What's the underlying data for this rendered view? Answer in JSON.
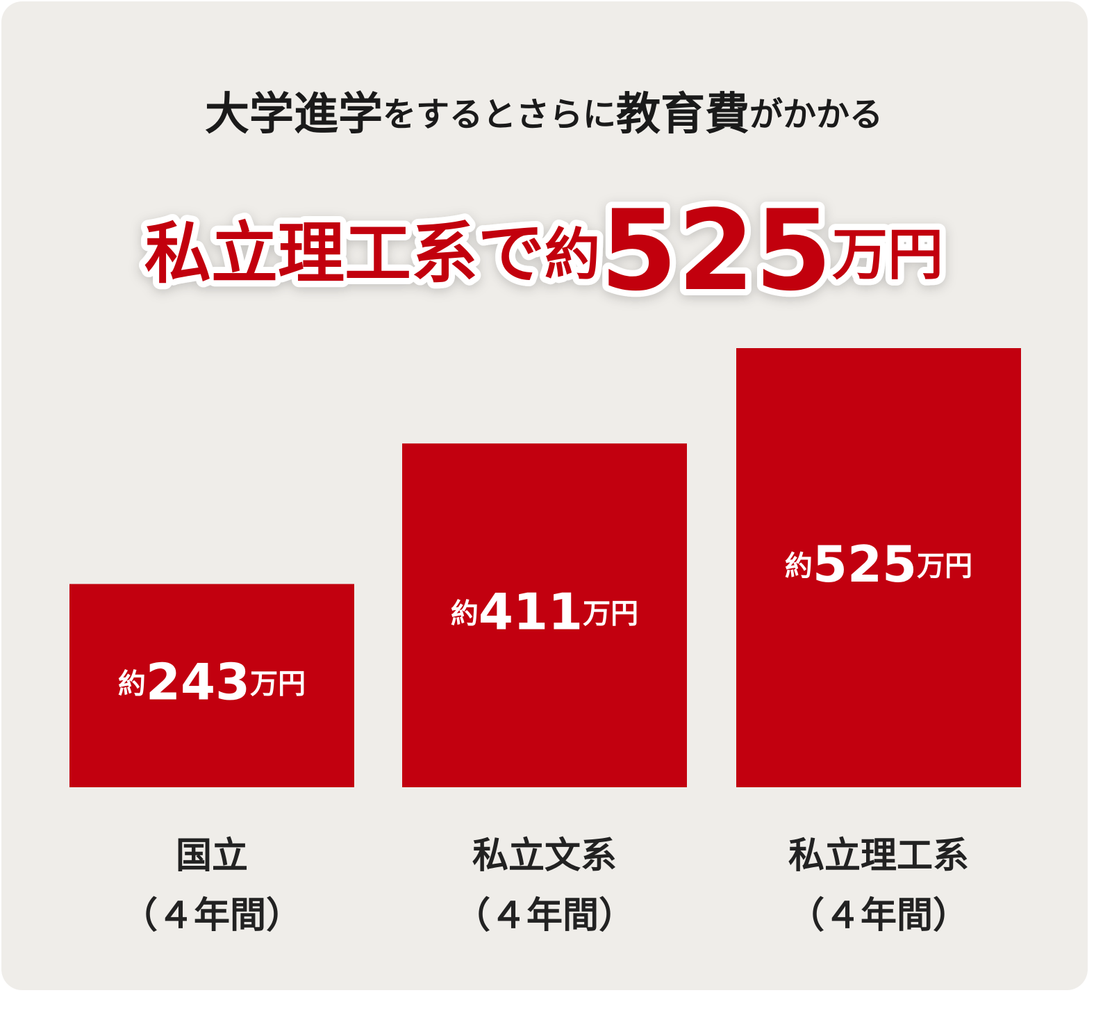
{
  "chart_data": {
    "type": "bar",
    "title": "大学進学をするとさらに教育費がかかる",
    "subtitle": "私立理工系で約525万円",
    "categories": [
      "国立（４年間）",
      "私立文系（４年間）",
      "私立理工系（４年間）"
    ],
    "values": [
      243,
      411,
      525
    ],
    "value_labels": [
      "約243万円",
      "約411万円",
      "約525万円"
    ],
    "color": "#c2000f"
  }
}
